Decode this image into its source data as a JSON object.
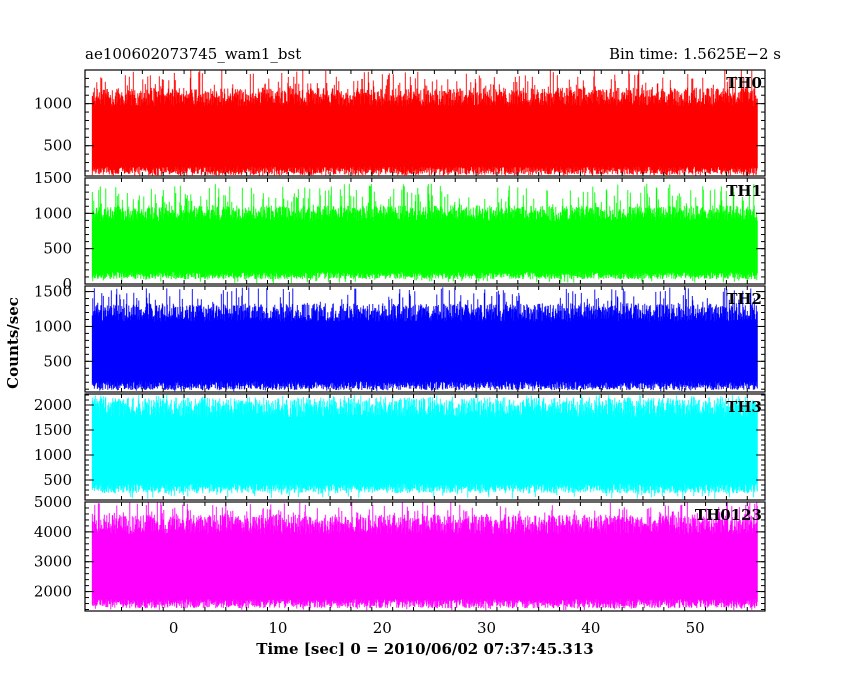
{
  "header": {
    "title": "ae100602073745_wam1_bst",
    "bin_time": "Bin time: 1.5625E−2 s"
  },
  "chart_data": {
    "type": "line",
    "title": "ae100602073745_wam1_bst",
    "subtitle": "Bin time: 1.5625E−2 s",
    "xlabel": "Time [sec] 0 = 2010/06/02 07:37:45.313",
    "ylabel": "Counts/sec",
    "xlim": [
      -8.5,
      56.7
    ],
    "data_x_range": [
      -7.8,
      56
    ],
    "x_ticks": [
      0,
      10,
      20,
      30,
      40,
      50
    ],
    "grid": false,
    "panels": [
      {
        "name": "TH0",
        "color": "#ff0000",
        "ylim": [
          140,
          1400
        ],
        "yticks": [
          500,
          1000
        ],
        "ytick_labels": [
          "500",
          "1000"
        ],
        "band_low": 200,
        "band_high": 1080,
        "spike_max": 1400
      },
      {
        "name": "TH1",
        "color": "#00ff00",
        "ylim": [
          0,
          1500
        ],
        "yticks": [
          0,
          500,
          1000,
          1500
        ],
        "ytick_labels": [
          "0",
          "500",
          "1000",
          "1500"
        ],
        "band_low": 120,
        "band_high": 1000,
        "spike_max": 1420
      },
      {
        "name": "TH2",
        "color": "#0000ff",
        "ylim": [
          60,
          1580
        ],
        "yticks": [
          500,
          1000,
          1500
        ],
        "ytick_labels": [
          "500",
          "1000",
          "1500"
        ],
        "band_low": 150,
        "band_high": 1200,
        "spike_max": 1560
      },
      {
        "name": "TH3",
        "color": "#00ffff",
        "ylim": [
          100,
          2220
        ],
        "yticks": [
          500,
          1000,
          1500,
          2000
        ],
        "ytick_labels": [
          "500",
          "1000",
          "1500",
          "2000"
        ],
        "band_low": 330,
        "band_high": 1950,
        "spike_max": 2200
      },
      {
        "name": "TH0123",
        "color": "#ff00ff",
        "ylim": [
          1350,
          5000
        ],
        "yticks": [
          2000,
          3000,
          4000,
          5000
        ],
        "ytick_labels": [
          "2000",
          "3000",
          "4000",
          "5000"
        ],
        "band_low": 1600,
        "band_high": 4250,
        "spike_max": 5000
      }
    ]
  }
}
